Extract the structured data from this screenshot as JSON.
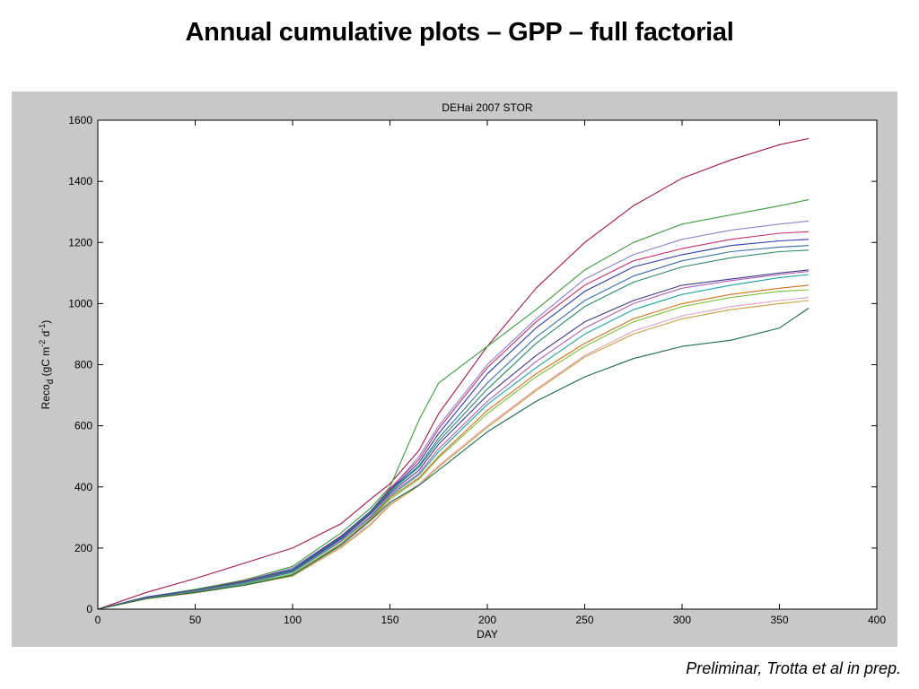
{
  "slide": {
    "title": "Annual cumulative plots – GPP – full factorial",
    "caption": "Preliminar, Trotta et al in prep."
  },
  "chart_data": {
    "type": "line",
    "title": "DEHai 2007 STOR",
    "xlabel": "DAY",
    "ylabel": "Reco_d (gC m^-2 d^-1)",
    "ylabel_parts": {
      "base": "Reco",
      "sub": "d",
      "mid": " (gC m",
      "sup1": "-2",
      "mid2": " d",
      "sup2": "-1",
      "end": ")"
    },
    "xlim": [
      0,
      400
    ],
    "ylim": [
      0,
      1600
    ],
    "xticks": [
      0,
      50,
      100,
      150,
      200,
      250,
      300,
      350,
      400
    ],
    "yticks": [
      0,
      200,
      400,
      600,
      800,
      1000,
      1200,
      1400,
      1600
    ],
    "grid": false,
    "legend": "none",
    "x": [
      0,
      25,
      50,
      75,
      100,
      125,
      140,
      150,
      165,
      175,
      200,
      225,
      250,
      275,
      300,
      325,
      350,
      365
    ],
    "series": [
      {
        "color": "#a0184a",
        "values": [
          0,
          55,
          100,
          150,
          200,
          280,
          360,
          410,
          520,
          640,
          860,
          1050,
          1200,
          1320,
          1410,
          1470,
          1520,
          1540
        ]
      },
      {
        "color": "#3d9a3d",
        "values": [
          0,
          40,
          65,
          95,
          140,
          250,
          330,
          400,
          620,
          740,
          860,
          980,
          1110,
          1200,
          1260,
          1290,
          1320,
          1340
        ]
      },
      {
        "color": "#8c84cc",
        "values": [
          0,
          38,
          62,
          92,
          135,
          240,
          320,
          390,
          500,
          600,
          800,
          950,
          1080,
          1160,
          1210,
          1240,
          1260,
          1270
        ]
      },
      {
        "color": "#c0306a",
        "values": [
          0,
          40,
          62,
          92,
          130,
          240,
          320,
          395,
          490,
          590,
          790,
          940,
          1060,
          1140,
          1180,
          1210,
          1230,
          1235
        ]
      },
      {
        "color": "#2a3aa8",
        "values": [
          0,
          40,
          62,
          90,
          130,
          238,
          320,
          390,
          480,
          575,
          770,
          920,
          1040,
          1120,
          1160,
          1190,
          1205,
          1210
        ]
      },
      {
        "color": "#3a6ea8",
        "values": [
          0,
          38,
          60,
          88,
          128,
          235,
          318,
          388,
          470,
          560,
          740,
          890,
          1010,
          1090,
          1140,
          1170,
          1185,
          1190
        ]
      },
      {
        "color": "#2a8a6a",
        "values": [
          0,
          38,
          60,
          88,
          128,
          232,
          315,
          385,
          465,
          550,
          720,
          870,
          990,
          1070,
          1120,
          1150,
          1170,
          1175
        ]
      },
      {
        "color": "#3b3b8c",
        "values": [
          0,
          38,
          58,
          85,
          125,
          230,
          312,
          380,
          455,
          540,
          700,
          830,
          940,
          1010,
          1060,
          1080,
          1100,
          1110
        ]
      },
      {
        "color": "#b060b0",
        "values": [
          0,
          37,
          58,
          85,
          122,
          225,
          305,
          375,
          445,
          525,
          680,
          810,
          920,
          1000,
          1050,
          1075,
          1095,
          1105
        ]
      },
      {
        "color": "#20a0a0",
        "values": [
          0,
          36,
          56,
          83,
          120,
          222,
          300,
          370,
          440,
          515,
          670,
          790,
          900,
          980,
          1030,
          1060,
          1085,
          1095
        ]
      },
      {
        "color": "#d07020",
        "values": [
          0,
          35,
          55,
          80,
          115,
          215,
          295,
          365,
          430,
          500,
          650,
          770,
          870,
          950,
          1000,
          1030,
          1050,
          1060
        ]
      },
      {
        "color": "#80c040",
        "values": [
          0,
          35,
          55,
          80,
          115,
          212,
          290,
          360,
          425,
          495,
          640,
          760,
          860,
          940,
          990,
          1020,
          1040,
          1045
        ]
      },
      {
        "color": "#e0a0c0",
        "values": [
          0,
          34,
          54,
          78,
          110,
          205,
          280,
          345,
          410,
          470,
          600,
          720,
          830,
          910,
          960,
          990,
          1010,
          1020
        ]
      },
      {
        "color": "#c8a040",
        "values": [
          0,
          34,
          53,
          78,
          108,
          202,
          275,
          340,
          405,
          465,
          595,
          715,
          825,
          900,
          950,
          980,
          1000,
          1010
        ]
      },
      {
        "color": "#1a6a4a",
        "values": [
          0,
          35,
          55,
          78,
          112,
          210,
          290,
          350,
          405,
          455,
          580,
          680,
          760,
          820,
          860,
          880,
          920,
          985
        ]
      }
    ]
  }
}
